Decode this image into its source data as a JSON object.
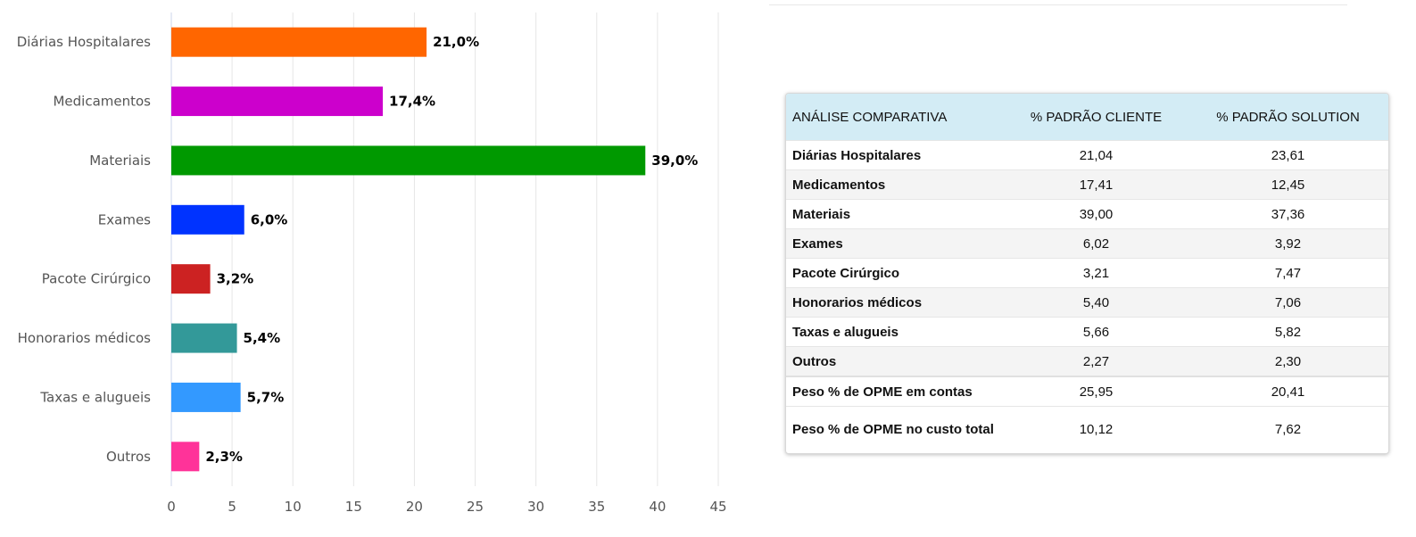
{
  "chart_data": {
    "type": "bar",
    "orientation": "horizontal",
    "categories": [
      "Diárias Hospitalares",
      "Medicamentos",
      "Materiais",
      "Exames",
      "Pacote Cirúrgico",
      "Honorarios médicos",
      "Taxas e alugueis",
      "Outros"
    ],
    "values": [
      21.0,
      17.4,
      39.0,
      6.0,
      3.2,
      5.4,
      5.7,
      2.3
    ],
    "data_labels": [
      "21,0%",
      "17,4%",
      "39,0%",
      "6,0%",
      "3,2%",
      "5,4%",
      "5,7%",
      "2,3%"
    ],
    "colors": [
      "#ff6600",
      "#cc00cc",
      "#009900",
      "#0033ff",
      "#cc2222",
      "#339999",
      "#3399ff",
      "#ff3399"
    ],
    "xlim": [
      0,
      45
    ],
    "xticks": [
      0,
      5,
      10,
      15,
      20,
      25,
      30,
      35,
      40,
      45
    ],
    "grid": true
  },
  "table": {
    "headers": [
      "ANÁLISE COMPARATIVA",
      "% PADRÃO CLIENTE",
      "% PADRÃO SOLUTION"
    ],
    "rows": [
      [
        "Diárias Hospitalares",
        "21,04",
        "23,61"
      ],
      [
        "Medicamentos",
        "17,41",
        "12,45"
      ],
      [
        "Materiais",
        "39,00",
        "37,36"
      ],
      [
        "Exames",
        "6,02",
        "3,92"
      ],
      [
        "Pacote Cirúrgico",
        "3,21",
        "7,47"
      ],
      [
        "Honorarios médicos",
        "5,40",
        "7,06"
      ],
      [
        "Taxas e alugueis",
        "5,66",
        "5,82"
      ],
      [
        "Outros",
        "2,27",
        "2,30"
      ]
    ],
    "footer_rows": [
      [
        "Peso % de OPME em contas",
        "25,95",
        "20,41"
      ],
      [
        "Peso % de OPME no custo total",
        "10,12",
        "7,62"
      ]
    ]
  }
}
